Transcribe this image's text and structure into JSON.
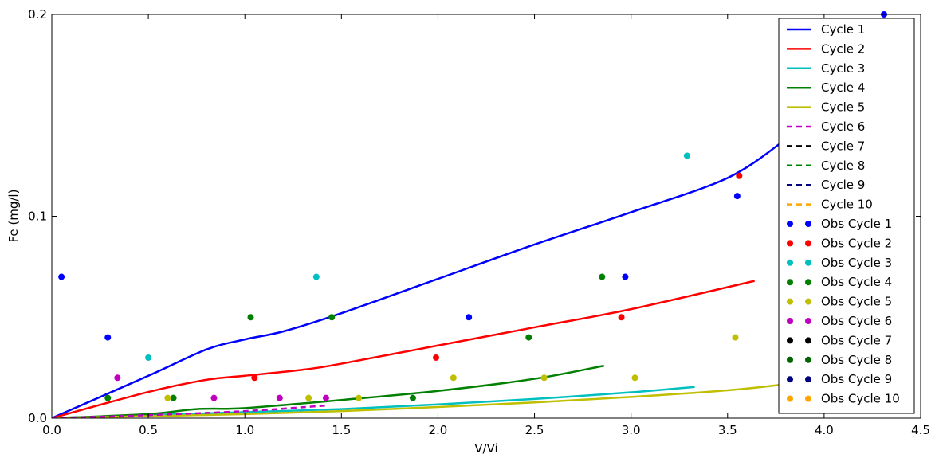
{
  "chart_data": {
    "type": "line",
    "xlabel": "V/Vi",
    "ylabel": "Fe (mg/l)",
    "xlim": [
      0,
      4.5
    ],
    "ylim": [
      0,
      0.2
    ],
    "x_ticks": [
      0,
      0.5,
      1.0,
      1.5,
      2.0,
      2.5,
      3.0,
      3.5,
      4.0,
      4.5
    ],
    "x_tick_labels": [
      "0.0",
      "0.5",
      "1.0",
      "1.5",
      "2.0",
      "2.5",
      "3.0",
      "3.5",
      "4.0",
      "4.5"
    ],
    "y_ticks": [
      0,
      0.1,
      0.2
    ],
    "y_tick_labels": [
      "0.0",
      "0.1",
      "0.2"
    ],
    "grid": false,
    "legend_position": "top-right",
    "series": [
      {
        "name": "Cycle 1",
        "kind": "line",
        "style": "solid",
        "color": "#0000ff",
        "x": [
          0,
          0.5,
          0.8,
          1.0,
          1.2,
          1.5,
          2.0,
          2.5,
          3.0,
          3.5,
          3.8
        ],
        "y": [
          0,
          0.021,
          0.034,
          0.039,
          0.043,
          0.052,
          0.069,
          0.086,
          0.102,
          0.119,
          0.138
        ]
      },
      {
        "name": "Cycle 2",
        "kind": "line",
        "style": "solid",
        "color": "#ff0000",
        "x": [
          0,
          0.5,
          0.8,
          1.0,
          1.3,
          1.5,
          2.0,
          2.5,
          3.0,
          3.64
        ],
        "y": [
          0,
          0.013,
          0.019,
          0.021,
          0.024,
          0.027,
          0.036,
          0.045,
          0.054,
          0.068
        ]
      },
      {
        "name": "Cycle 3",
        "kind": "line",
        "style": "solid",
        "color": "#00bfbf",
        "x": [
          0,
          0.5,
          1.0,
          1.5,
          2.0,
          2.5,
          3.0,
          3.33
        ],
        "y": [
          0,
          0.0015,
          0.003,
          0.0045,
          0.0068,
          0.0095,
          0.0128,
          0.0155
        ]
      },
      {
        "name": "Cycle 4",
        "kind": "line",
        "style": "solid",
        "color": "#008000",
        "x": [
          0,
          0.5,
          0.75,
          1.0,
          1.5,
          2.0,
          2.5,
          2.86
        ],
        "y": [
          0,
          0.002,
          0.0045,
          0.005,
          0.009,
          0.0135,
          0.0195,
          0.026
        ]
      },
      {
        "name": "Cycle 5",
        "kind": "line",
        "style": "solid",
        "color": "#bfbf00",
        "x": [
          0,
          0.5,
          1.0,
          1.5,
          2.0,
          2.5,
          3.0,
          3.5,
          3.8
        ],
        "y": [
          0,
          0.001,
          0.002,
          0.0035,
          0.0055,
          0.0078,
          0.0105,
          0.0138,
          0.0168
        ]
      },
      {
        "name": "Cycle 6",
        "kind": "line",
        "style": "dashed",
        "color": "#bf00bf",
        "x": [
          0,
          0.5,
          1.0,
          1.43
        ],
        "y": [
          0,
          0.0015,
          0.0035,
          0.0063
        ]
      },
      {
        "name": "Cycle 7",
        "kind": "line",
        "style": "dashed",
        "color": "#000000",
        "x": [],
        "y": []
      },
      {
        "name": "Cycle 8",
        "kind": "line",
        "style": "dashed",
        "color": "#008000",
        "x": [],
        "y": []
      },
      {
        "name": "Cycle 9",
        "kind": "line",
        "style": "dashed",
        "color": "#000080",
        "x": [],
        "y": []
      },
      {
        "name": "Cycle 10",
        "kind": "line",
        "style": "dashed",
        "color": "#ffa500",
        "x": [],
        "y": []
      },
      {
        "name": "Obs Cycle 1",
        "kind": "scatter",
        "color": "#0000ff",
        "x": [
          0.05,
          0.29,
          2.16,
          2.97,
          3.55,
          4.31
        ],
        "y": [
          0.07,
          0.04,
          0.05,
          0.07,
          0.11,
          0.2
        ]
      },
      {
        "name": "Obs Cycle 2",
        "kind": "scatter",
        "color": "#ff0000",
        "x": [
          1.05,
          1.99,
          2.95,
          3.56
        ],
        "y": [
          0.02,
          0.03,
          0.05,
          0.12
        ]
      },
      {
        "name": "Obs Cycle 3",
        "kind": "scatter",
        "color": "#00bfbf",
        "x": [
          0.5,
          1.37,
          3.29
        ],
        "y": [
          0.03,
          0.07,
          0.13
        ]
      },
      {
        "name": "Obs Cycle 4",
        "kind": "scatter",
        "color": "#008000",
        "x": [
          0.29,
          0.63,
          1.03,
          1.45,
          1.87,
          2.47,
          2.85
        ],
        "y": [
          0.01,
          0.01,
          0.05,
          0.05,
          0.01,
          0.04,
          0.07
        ]
      },
      {
        "name": "Obs Cycle 5",
        "kind": "scatter",
        "color": "#bfbf00",
        "x": [
          0.6,
          1.33,
          1.59,
          2.08,
          2.55,
          3.02,
          3.54
        ],
        "y": [
          0.01,
          0.01,
          0.01,
          0.02,
          0.02,
          0.02,
          0.04
        ]
      },
      {
        "name": "Obs Cycle 6",
        "kind": "scatter",
        "color": "#bf00bf",
        "x": [
          0.34,
          0.84,
          1.18,
          1.42
        ],
        "y": [
          0.02,
          0.01,
          0.01,
          0.01
        ]
      },
      {
        "name": "Obs Cycle 7",
        "kind": "scatter",
        "color": "#000000",
        "x": [],
        "y": []
      },
      {
        "name": "Obs Cycle 8",
        "kind": "scatter",
        "color": "#006400",
        "x": [],
        "y": []
      },
      {
        "name": "Obs Cycle 9",
        "kind": "scatter",
        "color": "#000080",
        "x": [],
        "y": []
      },
      {
        "name": "Obs Cycle 10",
        "kind": "scatter",
        "color": "#ffa500",
        "x": [],
        "y": []
      }
    ]
  }
}
